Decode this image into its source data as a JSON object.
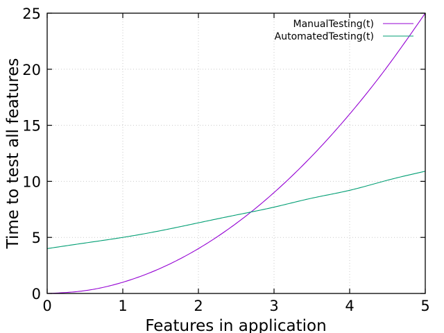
{
  "chart_data": {
    "type": "line",
    "title": "",
    "xlabel": "Features in application",
    "ylabel": "Time to test all features",
    "xlim": [
      0,
      5
    ],
    "ylim": [
      0,
      25
    ],
    "x_ticks": [
      "0",
      "1",
      "2",
      "3",
      "4",
      "5"
    ],
    "y_ticks": [
      "0",
      "5",
      "10",
      "15",
      "20",
      "25"
    ],
    "grid": true,
    "legend_position": "top-right",
    "x": [
      0,
      0.5,
      1,
      1.5,
      2,
      2.5,
      3,
      3.5,
      4,
      4.5,
      5
    ],
    "series": [
      {
        "name": "ManualTesting(t)",
        "color": "#9400d3",
        "values": [
          0,
          0.25,
          1,
          2.25,
          4,
          6.25,
          9,
          12.25,
          16,
          20.25,
          25
        ]
      },
      {
        "name": "AutomatedTesting(t)",
        "color": "#009e73",
        "values": [
          4,
          4.5,
          5,
          5.6,
          6.3,
          7,
          7.7,
          8.5,
          9.2,
          10.1,
          10.9
        ]
      }
    ]
  }
}
